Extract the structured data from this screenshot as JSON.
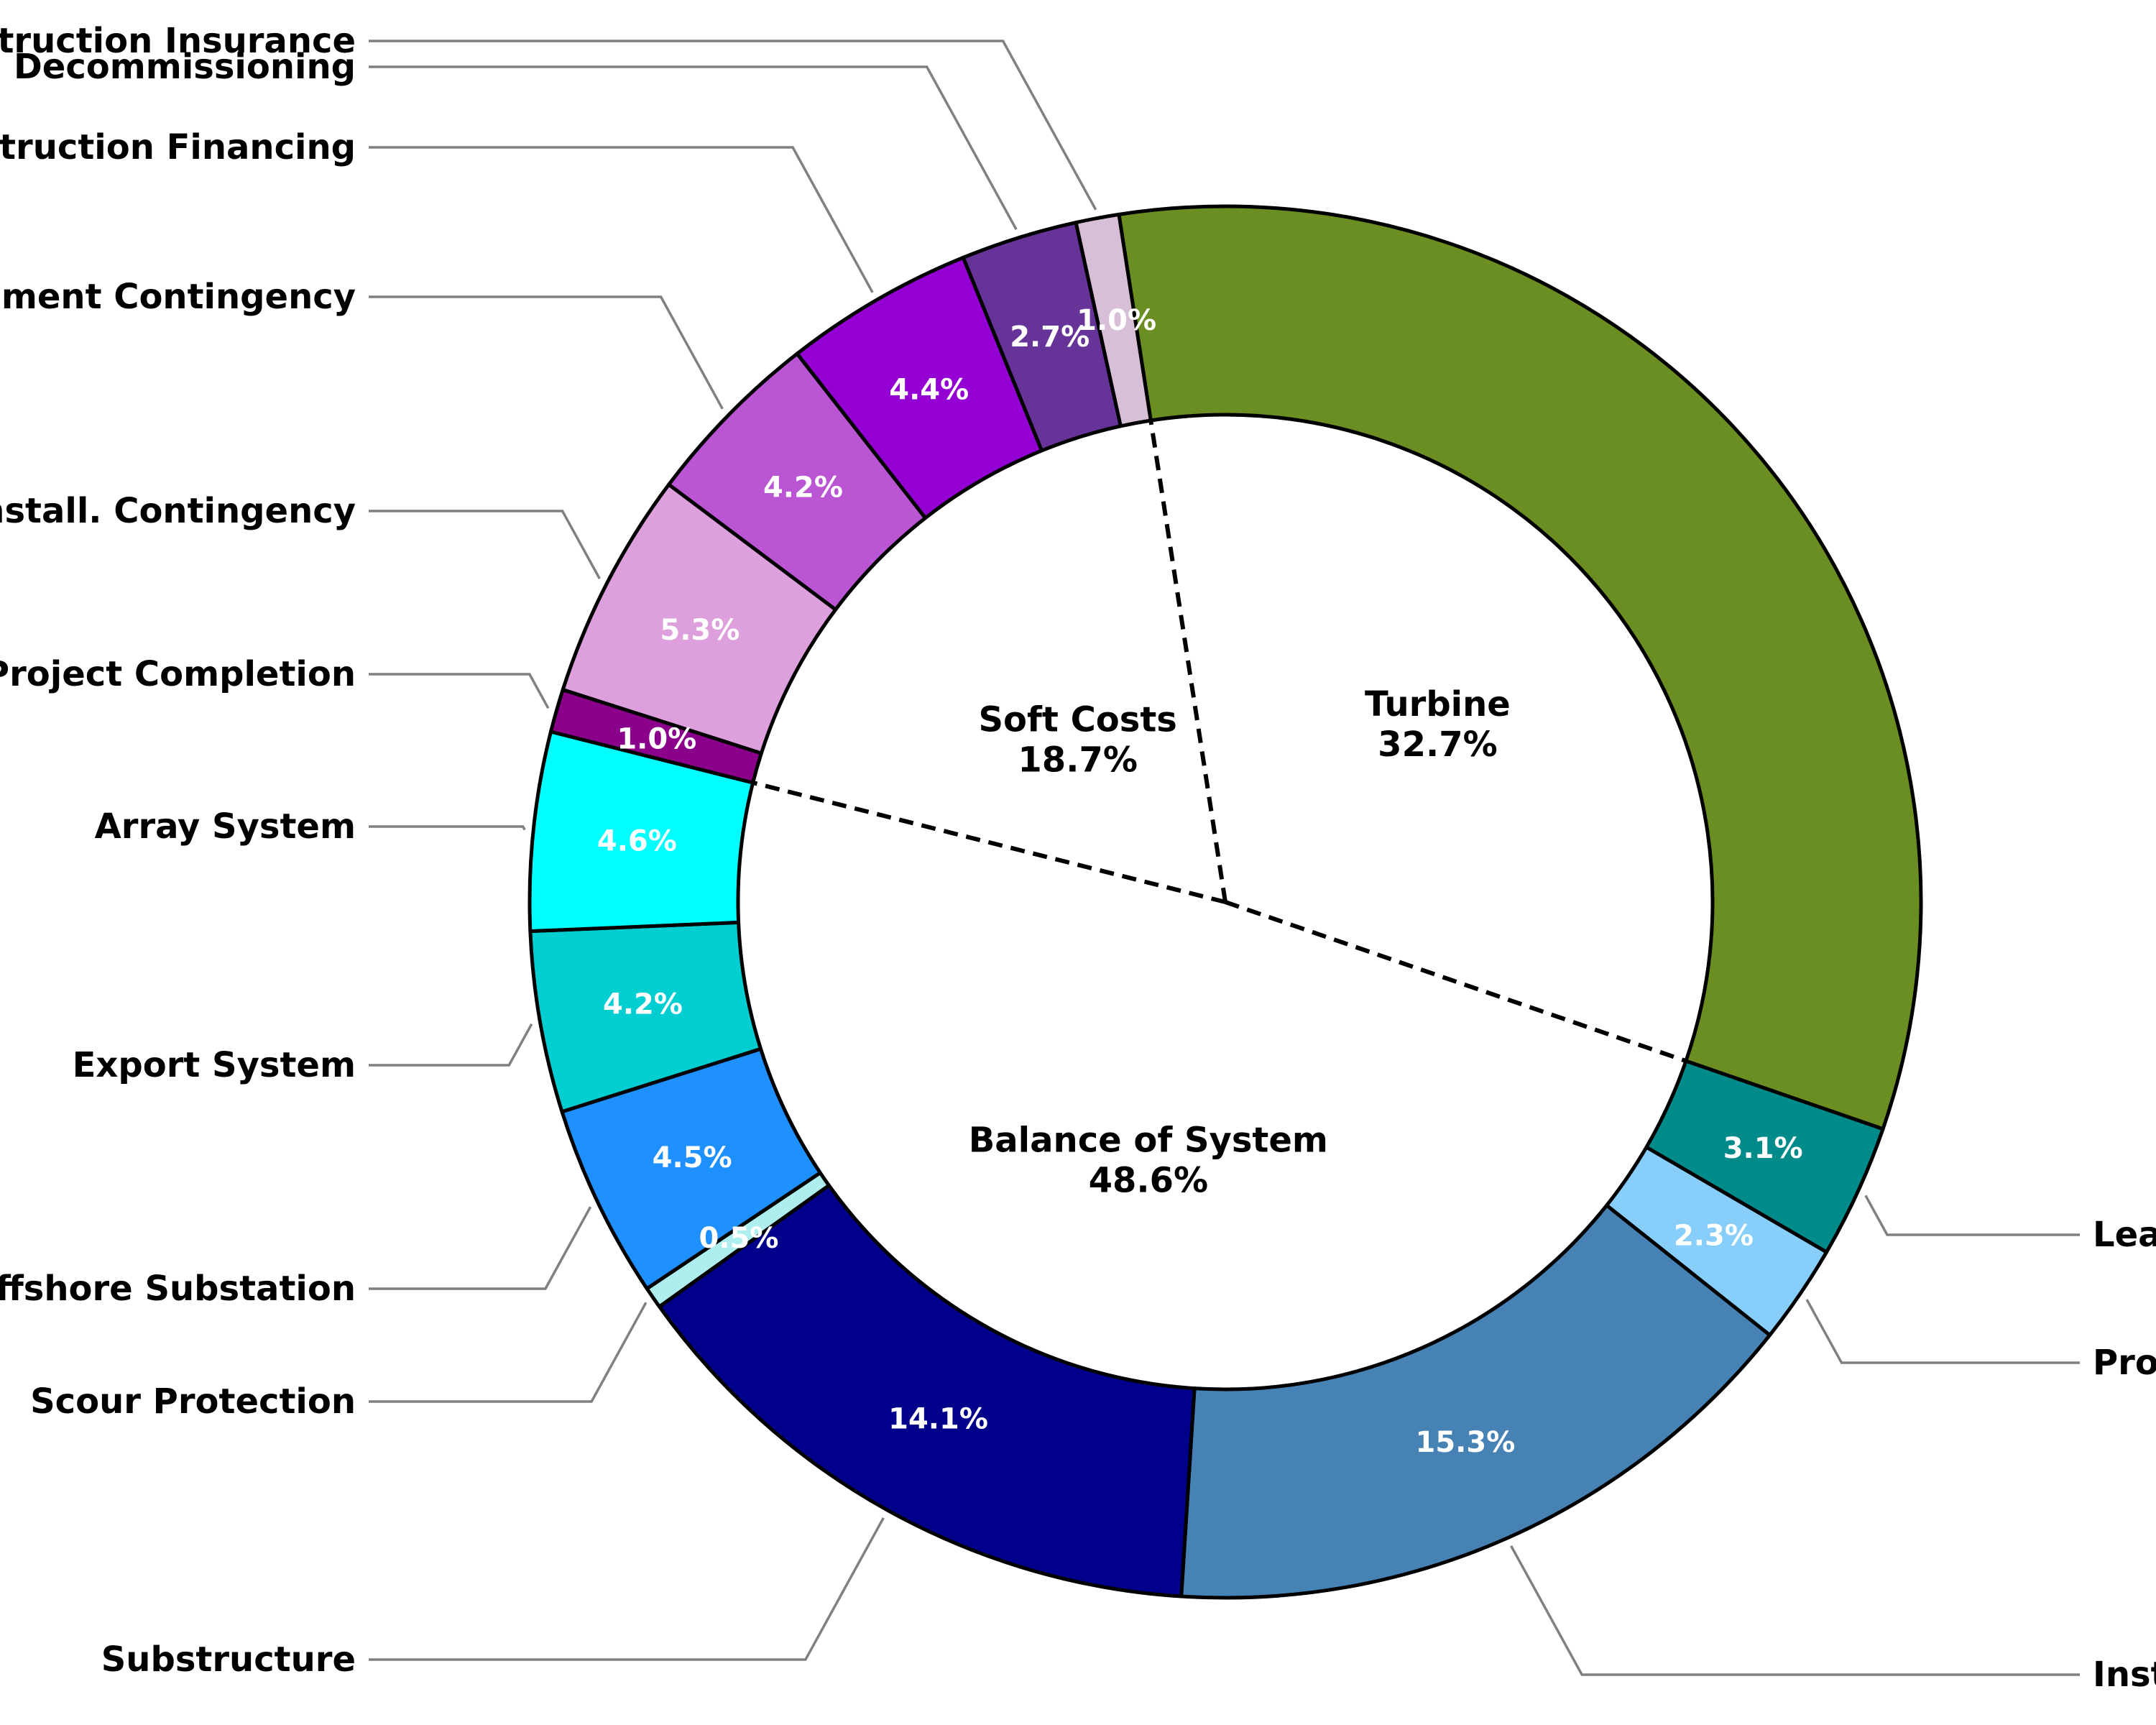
{
  "chart_data": {
    "type": "pie",
    "title": "",
    "start_angle_deg": -8.8,
    "direction": "clockwise",
    "segments": [
      {
        "name": "Turbine",
        "value": 32.7,
        "pct_label": "",
        "color": "#6b8e23",
        "label_side": "none"
      },
      {
        "name": "Lease Area Costs",
        "value": 3.1,
        "pct_label": "3.1%",
        "color": "#008b8b",
        "label_side": "right"
      },
      {
        "name": "Project Development",
        "value": 2.3,
        "pct_label": "2.3%",
        "color": "#87cefa",
        "label_side": "right"
      },
      {
        "name": "Installation",
        "value": 15.3,
        "pct_label": "15.3%",
        "color": "#4682b4",
        "label_side": "right"
      },
      {
        "name": "Substructure",
        "value": 14.1,
        "pct_label": "14.1%",
        "color": "#00008b",
        "label_side": "left"
      },
      {
        "name": "Scour Protection",
        "value": 0.5,
        "pct_label": "0.5%",
        "color": "#afeeee",
        "label_side": "left"
      },
      {
        "name": "Offshore Substation",
        "value": 4.5,
        "pct_label": "4.5%",
        "color": "#1e90ff",
        "label_side": "left"
      },
      {
        "name": "Export System",
        "value": 4.2,
        "pct_label": "4.2%",
        "color": "#00ced1",
        "label_side": "left"
      },
      {
        "name": "Array System",
        "value": 4.6,
        "pct_label": "4.6%",
        "color": "#00ffff",
        "label_side": "left"
      },
      {
        "name": "Project Completion",
        "value": 1.0,
        "pct_label": "1.0%",
        "color": "#8b008b",
        "label_side": "left"
      },
      {
        "name": "Install. Contingency",
        "value": 5.3,
        "pct_label": "5.3%",
        "color": "#dda0dd",
        "label_side": "left"
      },
      {
        "name": "Procurement Contingency",
        "value": 4.2,
        "pct_label": "4.2%",
        "color": "#ba55d3",
        "label_side": "left"
      },
      {
        "name": "Construction Financing",
        "value": 4.4,
        "pct_label": "4.4%",
        "color": "#9400d3",
        "label_side": "left"
      },
      {
        "name": "Decommissioning",
        "value": 2.7,
        "pct_label": "2.7%",
        "color": "#663399",
        "label_side": "left"
      },
      {
        "name": "Construction Insurance",
        "value": 1.0,
        "pct_label": "1.0%",
        "color": "#d8bfd8",
        "label_side": "left"
      }
    ],
    "categories": [
      {
        "name": "Turbine",
        "pct_label": "32.7%",
        "value": 32.7
      },
      {
        "name": "Balance of System",
        "pct_label": "48.6%",
        "value": 48.6
      },
      {
        "name": "Soft Costs",
        "pct_label": "18.7%",
        "value": 18.7
      }
    ]
  }
}
